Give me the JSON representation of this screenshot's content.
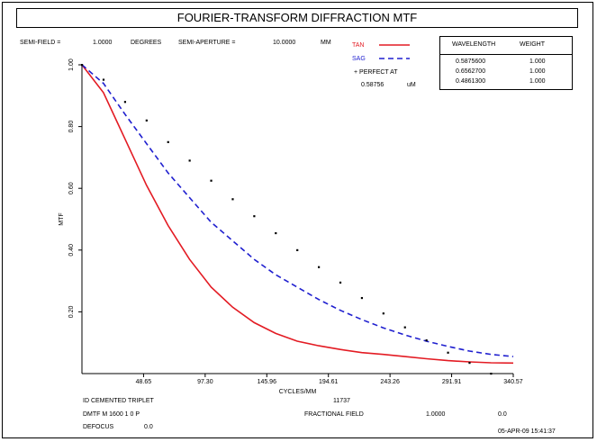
{
  "header": {
    "title": "FOURIER-TRANSFORM DIFFRACTION MTF",
    "semi_field_label": "SEMI-FIELD =",
    "semi_field_value": "1.0000",
    "semi_field_unit": "DEGREES",
    "semi_aperture_label": "SEMI-APERTURE =",
    "semi_aperture_value": "10.0000",
    "semi_aperture_unit": "MM"
  },
  "legend": {
    "tan_label": "TAN",
    "sag_label": "SAG",
    "perfect_label": "+ PERFECT AT",
    "perfect_value": "0.58756",
    "perfect_unit": "uM",
    "tan_color": "#e31b23",
    "sag_color": "#1f1fcf"
  },
  "wavelength_table": {
    "col_wavelength": "WAVELENGTH",
    "col_weight": "WEIGHT",
    "rows": [
      {
        "wavelength": "0.5875600",
        "weight": "1.000"
      },
      {
        "wavelength": "0.6562700",
        "weight": "1.000"
      },
      {
        "wavelength": "0.4861300",
        "weight": "1.000"
      }
    ]
  },
  "footer": {
    "id_label": "ID CEMENTED TRIPLET",
    "id_value": "11737",
    "dmtf_label": "DMTF M 1600 1 0 P",
    "fractional_field_label": "FRACTIONAL FIELD",
    "fractional_field_value": "1.0000",
    "fractional_field_value2": "0.0",
    "defocus_label": "DEFOCUS",
    "defocus_value": "0.0",
    "timestamp": "05-APR-09 15:41:37"
  },
  "chart_data": {
    "type": "line",
    "xlabel": "CYCLES/MM",
    "ylabel": "MTF",
    "xlim": [
      0,
      340.57
    ],
    "ylim": [
      0,
      1.0
    ],
    "x_ticks": [
      "48.65",
      "97.30",
      "145.96",
      "194.61",
      "243.26",
      "291.91",
      "340.57"
    ],
    "x_tick_values": [
      48.65,
      97.3,
      145.96,
      194.61,
      243.26,
      291.91,
      340.57
    ],
    "y_ticks": [
      "0.20",
      "0.40",
      "0.60",
      "0.80",
      "1.00"
    ],
    "y_tick_values": [
      0.2,
      0.4,
      0.6,
      0.8,
      1.0
    ],
    "series": [
      {
        "name": "TAN",
        "style": "solid",
        "color": "#e31b23",
        "x": [
          0,
          17,
          34,
          51,
          68,
          85,
          102,
          119,
          136,
          153,
          170,
          187,
          204,
          221,
          238,
          255,
          272,
          289,
          306,
          323,
          340.57
        ],
        "y": [
          1.0,
          0.91,
          0.76,
          0.61,
          0.48,
          0.37,
          0.28,
          0.215,
          0.165,
          0.13,
          0.105,
          0.09,
          0.078,
          0.068,
          0.062,
          0.055,
          0.048,
          0.042,
          0.038,
          0.035,
          0.034
        ]
      },
      {
        "name": "SAG",
        "style": "dashed",
        "color": "#1f1fcf",
        "x": [
          0,
          17,
          34,
          51,
          68,
          85,
          102,
          119,
          136,
          153,
          170,
          187,
          204,
          221,
          238,
          255,
          272,
          289,
          306,
          323,
          340.57
        ],
        "y": [
          1.0,
          0.94,
          0.84,
          0.745,
          0.65,
          0.57,
          0.49,
          0.43,
          0.37,
          0.32,
          0.28,
          0.24,
          0.205,
          0.175,
          0.148,
          0.125,
          0.105,
          0.088,
          0.073,
          0.062,
          0.055
        ]
      },
      {
        "name": "PERFECT",
        "style": "points",
        "color": "#000000",
        "x": [
          0,
          17,
          34,
          51,
          68,
          85,
          102,
          119,
          136,
          153,
          170,
          187,
          204,
          221,
          238,
          255,
          272,
          289,
          306,
          323
        ],
        "y": [
          1.0,
          0.952,
          0.88,
          0.82,
          0.75,
          0.69,
          0.625,
          0.565,
          0.51,
          0.455,
          0.4,
          0.345,
          0.295,
          0.245,
          0.195,
          0.15,
          0.108,
          0.068,
          0.035,
          0.0
        ]
      }
    ]
  }
}
